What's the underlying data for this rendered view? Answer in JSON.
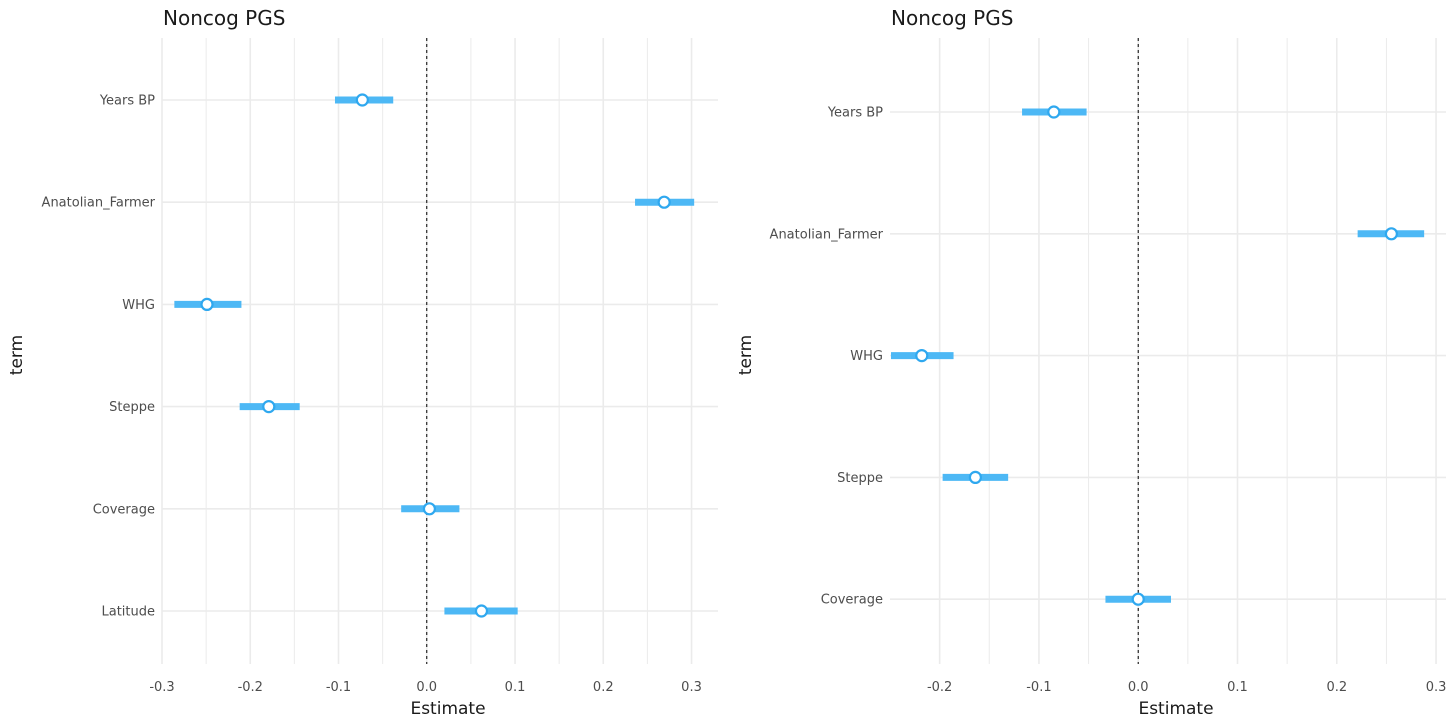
{
  "chart_data": [
    {
      "type": "scatter",
      "subtype": "coefficient-plot",
      "title": "Noncog PGS",
      "xlabel": "Estimate",
      "ylabel": "term",
      "xlim": [
        -0.3,
        0.33
      ],
      "xticks": [
        -0.3,
        -0.2,
        -0.1,
        0.0,
        0.1,
        0.2,
        0.3
      ],
      "xtick_labels": [
        "-0.3",
        "-0.2",
        "-0.1",
        "0.0",
        "0.1",
        "0.2",
        "0.3"
      ],
      "reference_line": 0,
      "grid": true,
      "terms": [
        {
          "name": "Years BP",
          "estimate": -0.073,
          "low": -0.104,
          "high": -0.038
        },
        {
          "name": "Anatolian_Farmer",
          "estimate": 0.269,
          "low": 0.236,
          "high": 0.303
        },
        {
          "name": "WHG",
          "estimate": -0.249,
          "low": -0.286,
          "high": -0.21
        },
        {
          "name": "Steppe",
          "estimate": -0.179,
          "low": -0.212,
          "high": -0.144
        },
        {
          "name": "Coverage",
          "estimate": 0.003,
          "low": -0.029,
          "high": 0.037
        },
        {
          "name": "Latitude",
          "estimate": 0.062,
          "low": 0.02,
          "high": 0.103
        }
      ]
    },
    {
      "type": "scatter",
      "subtype": "coefficient-plot",
      "title": "Noncog PGS",
      "xlabel": "Estimate",
      "ylabel": "term",
      "xlim": [
        -0.25,
        0.31
      ],
      "xticks": [
        -0.2,
        -0.1,
        0.0,
        0.1,
        0.2,
        0.3
      ],
      "xtick_labels": [
        "-0.2",
        "-0.1",
        "0.0",
        "0.1",
        "0.2",
        "0.3"
      ],
      "reference_line": 0,
      "grid": true,
      "terms": [
        {
          "name": "Years BP",
          "estimate": -0.085,
          "low": -0.117,
          "high": -0.052
        },
        {
          "name": "Anatolian_Farmer",
          "estimate": 0.255,
          "low": 0.221,
          "high": 0.288
        },
        {
          "name": "WHG",
          "estimate": -0.218,
          "low": -0.249,
          "high": -0.186
        },
        {
          "name": "Steppe",
          "estimate": -0.164,
          "low": -0.197,
          "high": -0.131
        },
        {
          "name": "Coverage",
          "estimate": 0.0,
          "low": -0.033,
          "high": 0.033
        }
      ]
    }
  ],
  "colors": {
    "interval": "#4db8f5",
    "point_stroke": "#2fa8ef",
    "point_fill": "#ffffff",
    "grid": "#ebebeb",
    "zero_line": "#000000"
  }
}
